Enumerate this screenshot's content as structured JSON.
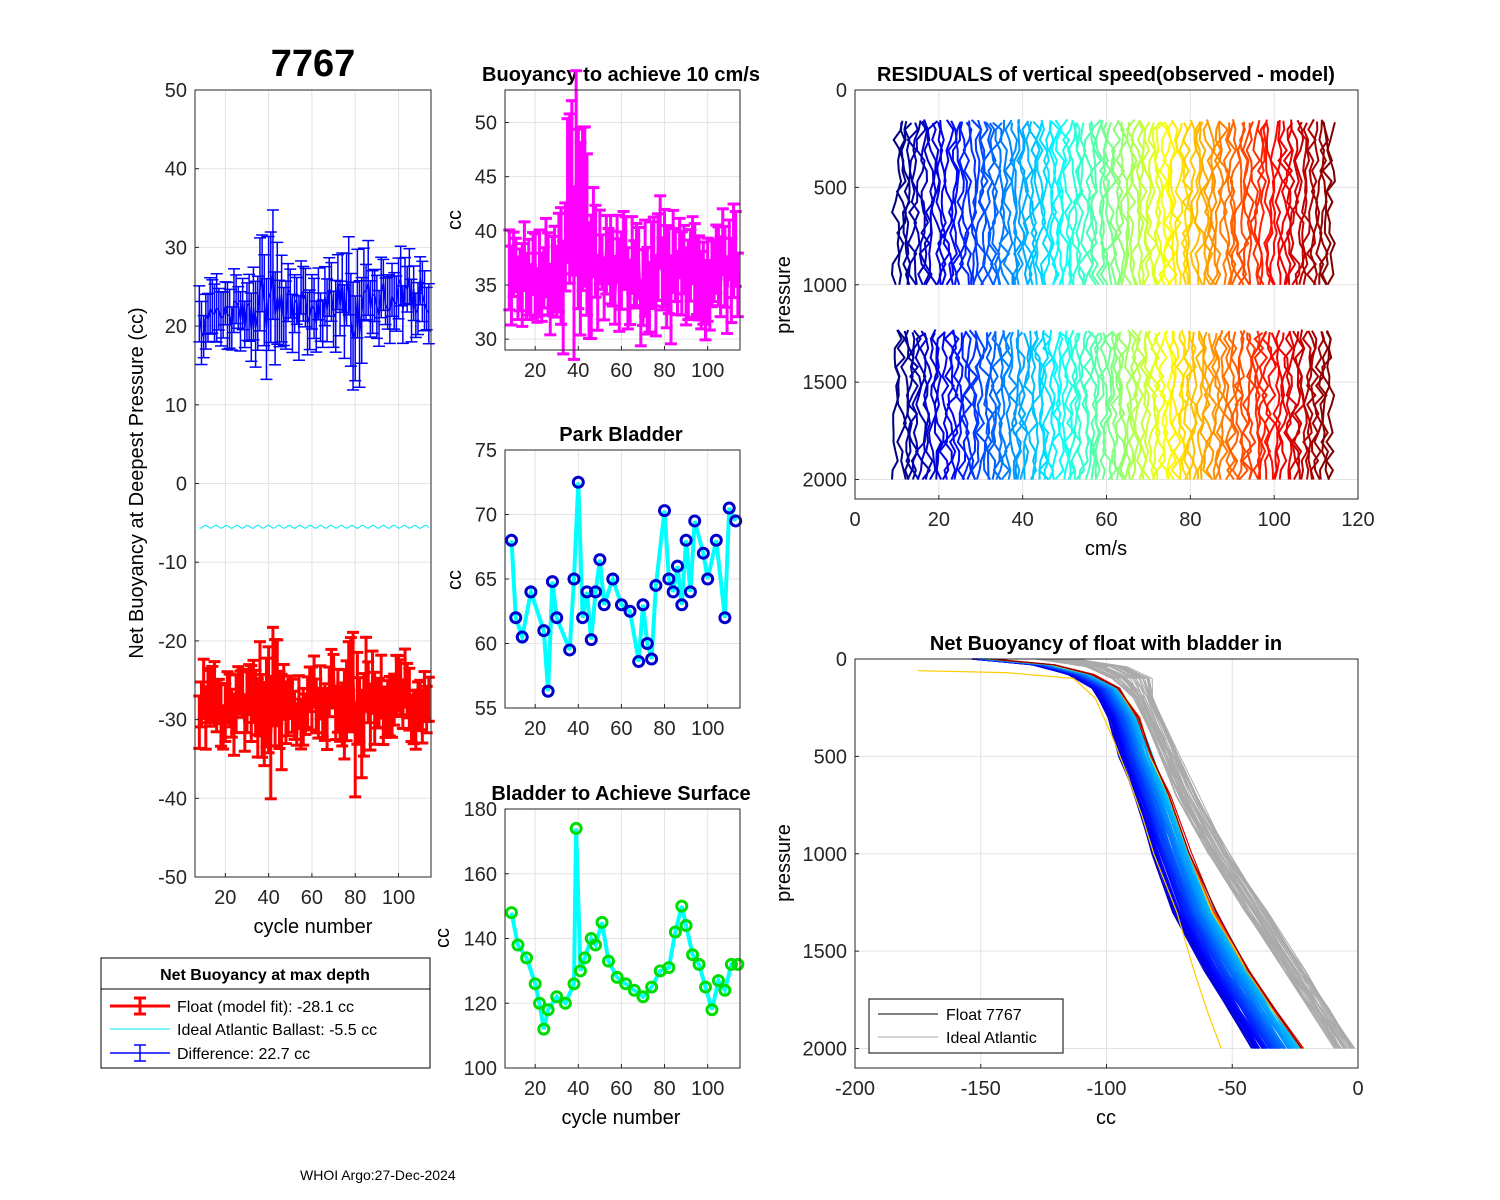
{
  "figure": {
    "footer": "WHOI Argo:27-Dec-2024"
  },
  "chart_data": [
    {
      "id": "net-buoyancy",
      "type": "line",
      "title": "7767",
      "xlabel": "cycle number",
      "ylabel": "Net Buoyancy at Deepest Pressure (cc)",
      "xlim": [
        6,
        115
      ],
      "ylim": [
        -50,
        50
      ],
      "xticks": [
        20,
        40,
        60,
        80,
        100
      ],
      "yticks": [
        -50,
        -40,
        -30,
        -20,
        -10,
        0,
        10,
        20,
        30,
        40,
        50
      ],
      "grid": true,
      "series": [
        {
          "name": "Float (model fit)",
          "color": "#ff0000",
          "style": "errorbar",
          "x": [
            10,
            20,
            30,
            40,
            50,
            60,
            70,
            80,
            90,
            100,
            110
          ],
          "values": [
            -28,
            -29,
            -28,
            -30,
            -29,
            -28,
            -27,
            -28,
            -28,
            -27,
            -28
          ],
          "errors": [
            4,
            4,
            4,
            8,
            4,
            4,
            4,
            7,
            4,
            4,
            4
          ]
        },
        {
          "name": "Ideal Atlantic Ballast",
          "color": "#00e5ff",
          "style": "line",
          "x": [
            6,
            115
          ],
          "values": [
            -5.5,
            -5.5
          ]
        },
        {
          "name": "Difference",
          "color": "#0000ff",
          "style": "errorbar",
          "x": [
            10,
            20,
            30,
            40,
            50,
            60,
            70,
            80,
            90,
            100,
            110
          ],
          "values": [
            21,
            21,
            22,
            23,
            22,
            22,
            23,
            22,
            23,
            24,
            24
          ],
          "errors": [
            4,
            4,
            4,
            8,
            4,
            4,
            4,
            7,
            4,
            4,
            4
          ]
        }
      ],
      "legend": {
        "title": "Net Buoyancy at max depth",
        "entries": [
          "Float (model fit): -28.1 cc",
          "Ideal Atlantic Ballast:  -5.5 cc",
          "Difference:  22.7 cc"
        ]
      }
    },
    {
      "id": "buoyancy-10cms",
      "type": "line",
      "title": "Buoyancy to achieve 10 cm/s",
      "xlabel": "",
      "ylabel": "cc",
      "xlim": [
        6,
        115
      ],
      "ylim": [
        29,
        53
      ],
      "xticks": [
        20,
        40,
        60,
        80,
        100
      ],
      "yticks": [
        30,
        35,
        40,
        45,
        50
      ],
      "grid": true,
      "series": [
        {
          "name": "buoyancy",
          "color": "#ff00ff",
          "style": "errorbar",
          "x": [
            10,
            20,
            30,
            39,
            50,
            60,
            70,
            80,
            90,
            100,
            110
          ],
          "values": [
            37,
            36,
            36,
            41,
            36,
            36,
            35,
            37,
            37,
            36,
            37
          ],
          "errors": [
            4,
            4,
            4,
            10,
            4,
            4,
            4,
            5,
            4,
            4,
            4
          ]
        }
      ]
    },
    {
      "id": "park-bladder",
      "type": "line",
      "title": "Park Bladder",
      "xlabel": "",
      "ylabel": "cc",
      "xlim": [
        6,
        115
      ],
      "ylim": [
        55,
        75
      ],
      "xticks": [
        20,
        40,
        60,
        80,
        100
      ],
      "yticks": [
        55,
        60,
        65,
        70,
        75
      ],
      "grid": true,
      "series": [
        {
          "name": "park bladder",
          "color": "#00ffff",
          "markerColor": "#0000cc",
          "x": [
            9,
            11,
            14,
            18,
            24,
            26,
            28,
            30,
            36,
            38,
            40,
            42,
            44,
            46,
            48,
            50,
            52,
            56,
            60,
            64,
            68,
            70,
            72,
            74,
            76,
            80,
            82,
            84,
            86,
            88,
            90,
            92,
            94,
            98,
            100,
            104,
            108,
            110,
            113
          ],
          "values": [
            68,
            62,
            60.5,
            64,
            61,
            56.3,
            64.8,
            62,
            59.5,
            65,
            72.5,
            62,
            64,
            60.3,
            64,
            66.5,
            63,
            65,
            63,
            62.5,
            58.6,
            63,
            60,
            58.8,
            64.5,
            70.3,
            65,
            64,
            66,
            63,
            68,
            64,
            69.5,
            67,
            65,
            68,
            62,
            70.5,
            69.5
          ]
        }
      ]
    },
    {
      "id": "bladder-surface",
      "type": "line",
      "title": "Bladder to Achieve Surface",
      "xlabel": "cycle number",
      "ylabel": "cc",
      "xlim": [
        6,
        115
      ],
      "ylim": [
        100,
        180
      ],
      "xticks": [
        20,
        40,
        60,
        80,
        100
      ],
      "yticks": [
        100,
        120,
        140,
        160,
        180
      ],
      "grid": true,
      "series": [
        {
          "name": "surface bladder",
          "color": "#00ffff",
          "markerColor": "#00dd00",
          "x": [
            9,
            12,
            16,
            20,
            22,
            24,
            26,
            30,
            34,
            38,
            39,
            41,
            43,
            46,
            48,
            51,
            54,
            58,
            62,
            66,
            70,
            74,
            78,
            82,
            85,
            88,
            90,
            93,
            96,
            99,
            102,
            105,
            108,
            111,
            114
          ],
          "values": [
            148,
            138,
            134,
            126,
            120,
            112,
            118,
            122,
            120,
            126,
            174,
            130,
            134,
            140,
            138,
            145,
            133,
            128,
            126,
            124,
            122,
            125,
            130,
            131,
            142,
            150,
            144,
            135,
            132,
            125,
            118,
            127,
            124,
            132,
            132
          ]
        }
      ]
    },
    {
      "id": "residuals",
      "type": "line",
      "title": "RESIDUALS of vertical speed(observed - model)",
      "xlabel": "cm/s",
      "ylabel": "pressure",
      "xlim": [
        0,
        120
      ],
      "ylim": [
        2100,
        0
      ],
      "xticks": [
        0,
        20,
        40,
        60,
        80,
        100,
        120
      ],
      "yticks": [
        0,
        500,
        1000,
        1500,
        2000
      ],
      "grid": true,
      "series": [
        {
          "name": "upper segment profiles",
          "colormap": "jet",
          "count": 110,
          "pressure": [
            150,
            1000
          ],
          "offset_start": 10,
          "offset_step": 0.95
        },
        {
          "name": "lower segment profiles",
          "colormap": "jet",
          "count": 110,
          "pressure": [
            1230,
            2000
          ],
          "offset_start": 10,
          "offset_step": 0.95
        }
      ]
    },
    {
      "id": "net-buoyancy-profile",
      "type": "line",
      "title": "Net Buoyancy of float with bladder in",
      "xlabel": "cc",
      "ylabel": "pressure",
      "xlim": [
        -200,
        0
      ],
      "ylim": [
        2100,
        0
      ],
      "xticks": [
        -200,
        -150,
        -100,
        -50,
        0
      ],
      "yticks": [
        0,
        500,
        1000,
        1500,
        2000
      ],
      "grid": true,
      "series": [
        {
          "name": "Float 7767",
          "color": "#000000",
          "pressure": [
            0,
            30,
            80,
            150,
            300,
            500,
            700,
            1000,
            1300,
            1600,
            1800,
            2000
          ],
          "values": [
            -150,
            -125,
            -110,
            -100,
            -93,
            -88,
            -82,
            -74,
            -65,
            -52,
            -42,
            -32
          ]
        },
        {
          "name": "Ideal Atlantic",
          "color": "#aaaaaa",
          "pressure": [
            0,
            40,
            100,
            200,
            400,
            700,
            1000,
            1300,
            1600,
            1800,
            2000
          ],
          "values": [
            -120,
            -100,
            -90,
            -85,
            -78,
            -68,
            -55,
            -40,
            -25,
            -15,
            -5
          ]
        },
        {
          "name": "outlier profile",
          "color": "#ffcc00",
          "pressure": [
            60,
            70,
            100,
            200,
            400,
            600,
            800,
            1000,
            1300,
            1600,
            1800,
            2000
          ],
          "values": [
            -175,
            -140,
            -112,
            -103,
            -98,
            -92,
            -86,
            -80,
            -72,
            -66,
            -60,
            -55
          ]
        }
      ],
      "legend": {
        "entries": [
          "Float 7767",
          "Ideal Atlantic"
        ]
      }
    }
  ]
}
